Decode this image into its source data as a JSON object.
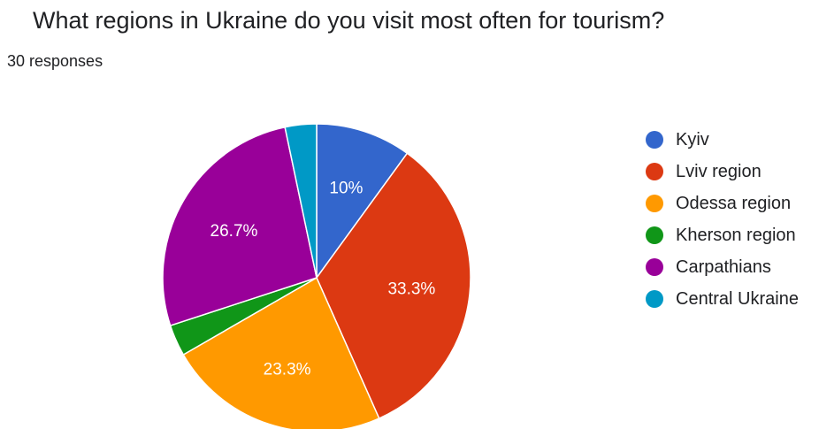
{
  "title": "What regions in Ukraine do you visit most often for tourism?",
  "subtitle": "30 responses",
  "chart_data": {
    "type": "pie",
    "title": "What regions in Ukraine do you visit most often for tourism?",
    "total_responses": 30,
    "legend_position": "right",
    "start_angle_deg": 90,
    "direction": "clockwise",
    "slices": [
      {
        "label": "Kyiv",
        "value": 10,
        "display": "10%",
        "color": "#3366cc"
      },
      {
        "label": "Lviv region",
        "value": 33.3,
        "display": "33.3%",
        "color": "#dc3912"
      },
      {
        "label": "Odessa region",
        "value": 23.3,
        "display": "23.3%",
        "color": "#ff9900"
      },
      {
        "label": "Kherson region",
        "value": 3.3,
        "display": "",
        "color": "#109618"
      },
      {
        "label": "Carpathians",
        "value": 26.7,
        "display": "26.7%",
        "color": "#990099"
      },
      {
        "label": "Central Ukraine",
        "value": 3.3,
        "display": "",
        "color": "#0099c6"
      }
    ]
  }
}
